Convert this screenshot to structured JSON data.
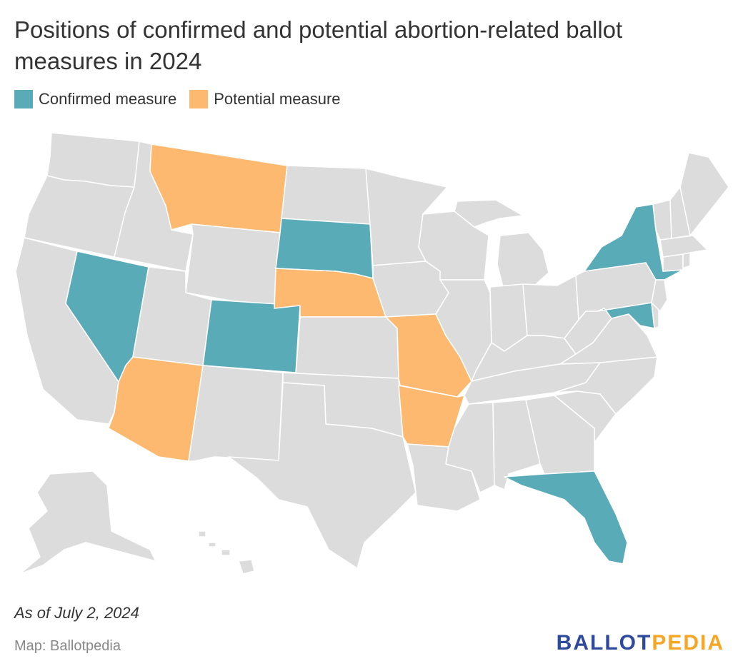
{
  "title": "Positions of confirmed and potential abortion-related ballot measures in 2024",
  "legend": [
    {
      "label": "Confirmed measure",
      "color": "#5aabb8"
    },
    {
      "label": "Potential measure",
      "color": "#fdb96f"
    }
  ],
  "colors": {
    "default_state": "#dcdcdc",
    "state_border": "#ffffff",
    "confirmed": "#5aabb8",
    "potential": "#fdb96f"
  },
  "map_data": {
    "confirmed_states": [
      "Nevada",
      "Colorado",
      "South Dakota",
      "New York",
      "Maryland",
      "Florida"
    ],
    "potential_states": [
      "Montana",
      "Arizona",
      "Nebraska",
      "Missouri",
      "Arkansas"
    ]
  },
  "as_of": "As of July 2, 2024",
  "source": "Map: Ballotpedia",
  "logo": {
    "part1": "BALLOT",
    "part2": "PEDIA",
    "color1": "#2e4a9e",
    "color2": "#f5a623"
  }
}
